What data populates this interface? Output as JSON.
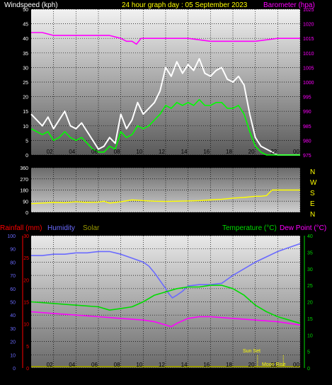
{
  "colors": {
    "windspeed_axis": "#ffffff",
    "title": "#ffff00",
    "barometer": "#ff00ff",
    "gust": "#ffffff",
    "avg_wind": "#00ff00",
    "wind_dir": "#ffff00",
    "rainfall": "#ff0000",
    "humidity": "#6a6aff",
    "solar": "#999900",
    "temperature": "#00dd00",
    "dewpoint": "#ff00ff",
    "sun_event": "#ffff00"
  },
  "chart_data": [
    {
      "type": "line",
      "name": "wind-barometer",
      "title": "24 hour graph day : 05 September 2023",
      "ylabel": "Windspeed (kph)",
      "y2label": "Barometer (hpa)",
      "x_ticks": [
        "02",
        "04",
        "06",
        "08",
        "10",
        "12",
        "14",
        "16",
        "18",
        "20",
        "22",
        "00"
      ],
      "y_ticks": [
        0,
        5,
        10,
        15,
        20,
        25,
        30,
        35,
        40,
        45,
        50
      ],
      "ylim": [
        0,
        50
      ],
      "y2_ticks": [
        975,
        980,
        985,
        990,
        995,
        1000,
        1005,
        1010,
        1015,
        1020,
        1025
      ],
      "y2lim": [
        975,
        1025
      ],
      "xlim": [
        0,
        24
      ],
      "series": [
        {
          "role": "gust",
          "x": [
            0,
            0.5,
            1,
            1.5,
            2,
            2.5,
            3,
            3.5,
            4,
            4.5,
            5,
            5.5,
            6,
            6.5,
            7,
            7.5,
            8,
            8.5,
            9,
            9.5,
            10,
            10.5,
            11,
            11.5,
            12,
            12.5,
            13,
            13.5,
            14,
            14.5,
            15,
            15.5,
            16,
            16.5,
            17,
            17.5,
            18,
            18.5,
            19,
            19.5,
            20,
            20.5,
            21,
            21.5,
            22,
            23,
            24
          ],
          "y": [
            14,
            12,
            10,
            13,
            9,
            12,
            15,
            10,
            9,
            11,
            8,
            5,
            2,
            3,
            6,
            4,
            14,
            9,
            12,
            18,
            14,
            16,
            18,
            22,
            30,
            27,
            32,
            28,
            31,
            29,
            33,
            28,
            27,
            29,
            30,
            26,
            25,
            27,
            24,
            14,
            6,
            3,
            2,
            1,
            0,
            0,
            0
          ]
        },
        {
          "role": "avg_wind",
          "x": [
            0,
            0.5,
            1,
            1.5,
            2,
            2.5,
            3,
            3.5,
            4,
            4.5,
            5,
            5.5,
            6,
            6.5,
            7,
            7.5,
            8,
            8.5,
            9,
            9.5,
            10,
            10.5,
            11,
            11.5,
            12,
            12.5,
            13,
            13.5,
            14,
            14.5,
            15,
            15.5,
            16,
            16.5,
            17,
            17.5,
            18,
            18.5,
            19,
            19.5,
            20,
            20.5,
            21,
            21.5,
            22,
            23,
            24
          ],
          "y": [
            9,
            8,
            7,
            8,
            5,
            6,
            8,
            6,
            5,
            6,
            4,
            2,
            1,
            1,
            3,
            2,
            8,
            6,
            7,
            10,
            9,
            10,
            12,
            14,
            17,
            16,
            18,
            17,
            18,
            17,
            19,
            17,
            17,
            18,
            18,
            16,
            16,
            17,
            14,
            8,
            3,
            1,
            0,
            0,
            0,
            0,
            0
          ]
        },
        {
          "role": "barometer",
          "x": [
            0,
            1,
            2,
            3,
            4,
            5,
            6,
            7,
            8,
            8.5,
            9,
            9.4,
            9.8,
            10.5,
            12,
            14,
            16,
            18,
            20,
            22,
            24
          ],
          "y": [
            1017,
            1017,
            1016,
            1016,
            1016,
            1016,
            1016,
            1016,
            1015,
            1014,
            1014,
            1013,
            1015,
            1015,
            1015,
            1015,
            1014,
            1014,
            1014,
            1015,
            1015
          ]
        }
      ]
    },
    {
      "type": "scatter",
      "name": "wind-direction",
      "y_ticks": [
        0,
        90,
        180,
        270,
        360
      ],
      "ylim": [
        0,
        360
      ],
      "xlim": [
        0,
        24
      ],
      "compass": [
        "N",
        "W",
        "S",
        "E",
        "N"
      ],
      "series": [
        {
          "role": "wind_dir",
          "x": [
            0,
            1,
            2,
            3,
            4,
            5,
            6,
            6.5,
            7,
            7.5,
            8,
            9,
            10,
            11,
            12,
            13,
            14,
            15,
            16,
            17,
            18,
            19,
            20,
            20.5,
            21,
            21.5,
            22,
            23,
            24
          ],
          "y": [
            70,
            75,
            80,
            78,
            85,
            80,
            82,
            90,
            75,
            80,
            85,
            100,
            95,
            90,
            88,
            90,
            92,
            95,
            100,
            105,
            115,
            120,
            130,
            130,
            135,
            180,
            180,
            180,
            180
          ]
        }
      ]
    },
    {
      "type": "line",
      "name": "temperature-humidity",
      "xlabel": "",
      "legend_left": [
        "Rainfall (mm)",
        "Humidity",
        "Solar"
      ],
      "legend_right": [
        "Temperature (°C)",
        "Dew Point (°C)"
      ],
      "x_ticks": [
        "02",
        "04",
        "06",
        "08",
        "10",
        "12",
        "14",
        "16",
        "18",
        "20",
        "22",
        "00"
      ],
      "humidity_ticks": [
        0,
        10,
        20,
        30,
        40,
        50,
        60,
        70,
        80,
        90,
        100
      ],
      "rain_ticks": [
        0,
        5,
        10,
        15,
        20,
        25,
        30
      ],
      "temp_ticks": [
        0,
        5,
        10,
        15,
        20,
        25,
        30,
        35,
        40
      ],
      "ylim_humidity": [
        0,
        100
      ],
      "ylim_rain": [
        0,
        30
      ],
      "ylim_temp": [
        0,
        40
      ],
      "xlim": [
        0,
        24
      ],
      "events": [
        {
          "label": "Sun Set",
          "x": 20.2
        },
        {
          "label": "Moon Rise",
          "x": 22.5
        }
      ],
      "series": [
        {
          "role": "humidity",
          "x": [
            0,
            1,
            2,
            3,
            4,
            5,
            6,
            7,
            8,
            9,
            10,
            10.5,
            11,
            11.5,
            12,
            12.3,
            12.6,
            13,
            13.5,
            14,
            15,
            16,
            17,
            18,
            19,
            20,
            21,
            22,
            23,
            24
          ],
          "y": [
            85,
            85,
            86,
            86,
            87,
            87,
            88,
            88,
            86,
            83,
            80,
            77,
            72,
            66,
            60,
            56,
            53,
            55,
            58,
            62,
            63,
            63,
            64,
            70,
            75,
            80,
            84,
            88,
            91,
            94
          ]
        },
        {
          "role": "temperature",
          "x": [
            0,
            2,
            4,
            6,
            7,
            8,
            9,
            10,
            11,
            12,
            13,
            14,
            15,
            16,
            17,
            18,
            19,
            20,
            21,
            22,
            23,
            24
          ],
          "y": [
            20,
            19.5,
            19,
            18.5,
            17.5,
            18,
            18.5,
            20,
            22,
            23,
            24,
            24.5,
            24.5,
            25,
            25,
            24,
            22,
            19,
            17,
            15.5,
            14.5,
            13.5
          ]
        },
        {
          "role": "dewpoint",
          "x": [
            0,
            2,
            4,
            6,
            8,
            10,
            11,
            12,
            12.5,
            13,
            14,
            15,
            16,
            18,
            20,
            22,
            24
          ],
          "y": [
            17,
            16.5,
            16,
            15.5,
            15,
            14.5,
            14,
            13,
            12.5,
            13.5,
            15,
            15.5,
            15.5,
            15,
            14.5,
            14,
            13
          ]
        },
        {
          "role": "solar",
          "x": [
            0,
            24
          ],
          "y": [
            0,
            0
          ]
        }
      ]
    }
  ]
}
